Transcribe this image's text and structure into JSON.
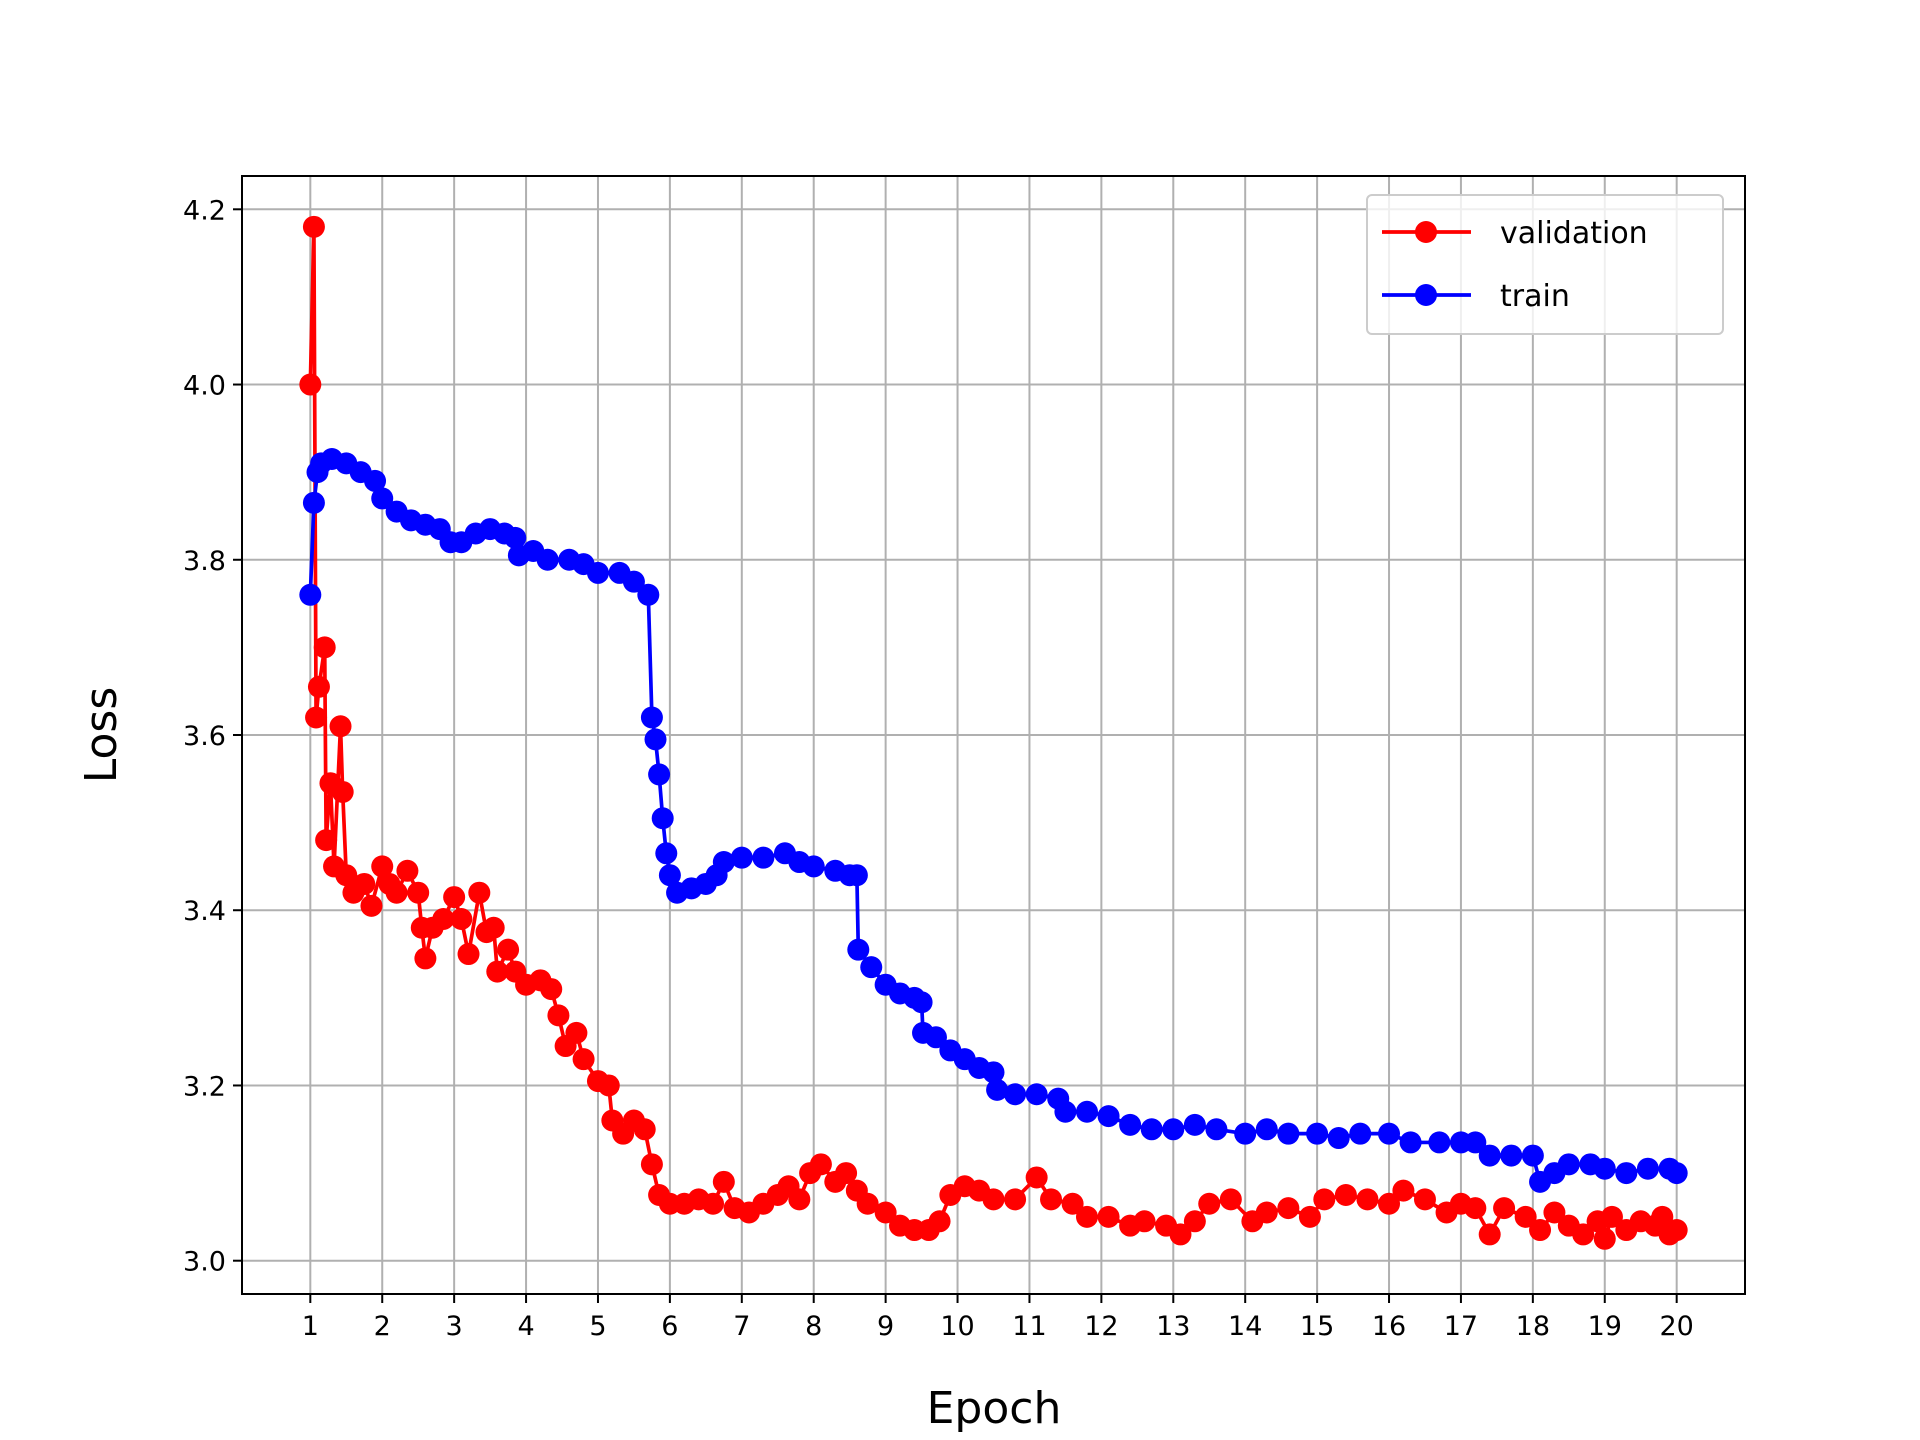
{
  "chart_data": {
    "type": "line",
    "xlabel": "Epoch",
    "ylabel": "Loss",
    "xlim": [
      0.05,
      20.95
    ],
    "ylim": [
      2.962,
      4.238
    ],
    "xticks": [
      1,
      2,
      3,
      4,
      5,
      6,
      7,
      8,
      9,
      10,
      11,
      12,
      13,
      14,
      15,
      16,
      17,
      18,
      19,
      20
    ],
    "yticks": [
      {
        "value": 3.0,
        "label": "3.0"
      },
      3.2,
      3.4,
      3.6,
      3.8,
      {
        "value": 4.0,
        "label": "4.0"
      },
      4.2
    ],
    "grid": true,
    "legend": "upper right",
    "series": [
      {
        "name": "validation",
        "color": "#ff0000",
        "x": [
          1.0,
          1.05,
          1.08,
          1.12,
          1.2,
          1.22,
          1.28,
          1.33,
          1.42,
          1.45,
          1.5,
          1.6,
          1.75,
          1.85,
          2.0,
          2.1,
          2.2,
          2.35,
          2.5,
          2.55,
          2.6,
          2.7,
          2.85,
          3.0,
          3.1,
          3.2,
          3.35,
          3.45,
          3.55,
          3.6,
          3.75,
          3.85,
          4.0,
          4.2,
          4.35,
          4.45,
          4.55,
          4.7,
          4.8,
          5.0,
          5.15,
          5.2,
          5.35,
          5.5,
          5.65,
          5.75,
          5.85,
          6.0,
          6.2,
          6.4,
          6.6,
          6.75,
          6.9,
          7.1,
          7.3,
          7.5,
          7.65,
          7.8,
          7.95,
          8.1,
          8.3,
          8.45,
          8.6,
          8.75,
          9.0,
          9.2,
          9.4,
          9.6,
          9.75,
          9.9,
          10.1,
          10.3,
          10.5,
          10.8,
          11.1,
          11.3,
          11.6,
          11.8,
          12.1,
          12.4,
          12.6,
          12.9,
          13.1,
          13.3,
          13.5,
          13.8,
          14.1,
          14.3,
          14.6,
          14.9,
          15.1,
          15.4,
          15.7,
          16.0,
          16.2,
          16.5,
          16.8,
          17.0,
          17.2,
          17.4,
          17.6,
          17.9,
          18.1,
          18.3,
          18.5,
          18.7,
          18.9,
          19.0,
          19.1,
          19.3,
          19.5,
          19.7,
          19.8,
          19.9,
          20.0
        ],
        "values": [
          4.0,
          4.18,
          3.62,
          3.655,
          3.7,
          3.48,
          3.545,
          3.45,
          3.61,
          3.535,
          3.44,
          3.42,
          3.43,
          3.405,
          3.45,
          3.43,
          3.42,
          3.445,
          3.42,
          3.38,
          3.345,
          3.38,
          3.39,
          3.415,
          3.39,
          3.35,
          3.42,
          3.375,
          3.38,
          3.33,
          3.355,
          3.33,
          3.315,
          3.32,
          3.31,
          3.28,
          3.245,
          3.26,
          3.23,
          3.205,
          3.2,
          3.16,
          3.145,
          3.16,
          3.15,
          3.11,
          3.075,
          3.065,
          3.065,
          3.07,
          3.065,
          3.09,
          3.06,
          3.055,
          3.065,
          3.075,
          3.085,
          3.07,
          3.1,
          3.11,
          3.09,
          3.1,
          3.08,
          3.065,
          3.055,
          3.04,
          3.035,
          3.035,
          3.045,
          3.075,
          3.085,
          3.08,
          3.07,
          3.07,
          3.095,
          3.07,
          3.065,
          3.05,
          3.05,
          3.04,
          3.045,
          3.04,
          3.03,
          3.045,
          3.065,
          3.07,
          3.045,
          3.055,
          3.06,
          3.05,
          3.07,
          3.075,
          3.07,
          3.065,
          3.08,
          3.07,
          3.055,
          3.065,
          3.06,
          3.03,
          3.06,
          3.05,
          3.035,
          3.055,
          3.04,
          3.03,
          3.045,
          3.025,
          3.05,
          3.035,
          3.045,
          3.04,
          3.05,
          3.03,
          3.035
        ]
      },
      {
        "name": "train",
        "color": "#0000ff",
        "x": [
          1.0,
          1.05,
          1.1,
          1.15,
          1.3,
          1.5,
          1.7,
          1.9,
          2.0,
          2.2,
          2.4,
          2.6,
          2.8,
          2.95,
          3.1,
          3.3,
          3.5,
          3.7,
          3.85,
          3.9,
          4.1,
          4.3,
          4.6,
          4.8,
          5.0,
          5.3,
          5.5,
          5.7,
          5.75,
          5.8,
          5.85,
          5.9,
          5.95,
          6.0,
          6.1,
          6.3,
          6.5,
          6.65,
          6.75,
          7.0,
          7.3,
          7.6,
          7.8,
          8.0,
          8.3,
          8.5,
          8.6,
          8.62,
          8.8,
          9.0,
          9.2,
          9.4,
          9.5,
          9.52,
          9.7,
          9.9,
          10.1,
          10.3,
          10.5,
          10.55,
          10.8,
          11.1,
          11.4,
          11.5,
          11.8,
          12.1,
          12.4,
          12.7,
          13.0,
          13.3,
          13.6,
          14.0,
          14.3,
          14.6,
          15.0,
          15.3,
          15.6,
          16.0,
          16.3,
          16.7,
          17.0,
          17.2,
          17.4,
          17.7,
          18.0,
          18.1,
          18.3,
          18.5,
          18.8,
          19.0,
          19.3,
          19.6,
          19.9,
          20.0
        ],
        "values": [
          3.76,
          3.865,
          3.9,
          3.91,
          3.915,
          3.91,
          3.9,
          3.89,
          3.87,
          3.855,
          3.845,
          3.84,
          3.835,
          3.82,
          3.82,
          3.83,
          3.835,
          3.83,
          3.825,
          3.805,
          3.81,
          3.8,
          3.8,
          3.795,
          3.785,
          3.785,
          3.775,
          3.76,
          3.62,
          3.595,
          3.555,
          3.505,
          3.465,
          3.44,
          3.42,
          3.425,
          3.43,
          3.44,
          3.455,
          3.46,
          3.46,
          3.465,
          3.455,
          3.45,
          3.445,
          3.44,
          3.44,
          3.355,
          3.335,
          3.315,
          3.305,
          3.3,
          3.295,
          3.26,
          3.255,
          3.24,
          3.23,
          3.22,
          3.215,
          3.195,
          3.19,
          3.19,
          3.185,
          3.17,
          3.17,
          3.165,
          3.155,
          3.15,
          3.15,
          3.155,
          3.15,
          3.145,
          3.15,
          3.145,
          3.145,
          3.14,
          3.145,
          3.145,
          3.135,
          3.135,
          3.135,
          3.135,
          3.12,
          3.12,
          3.12,
          3.09,
          3.1,
          3.11,
          3.11,
          3.105,
          3.1,
          3.105,
          3.105,
          3.1
        ]
      }
    ]
  }
}
